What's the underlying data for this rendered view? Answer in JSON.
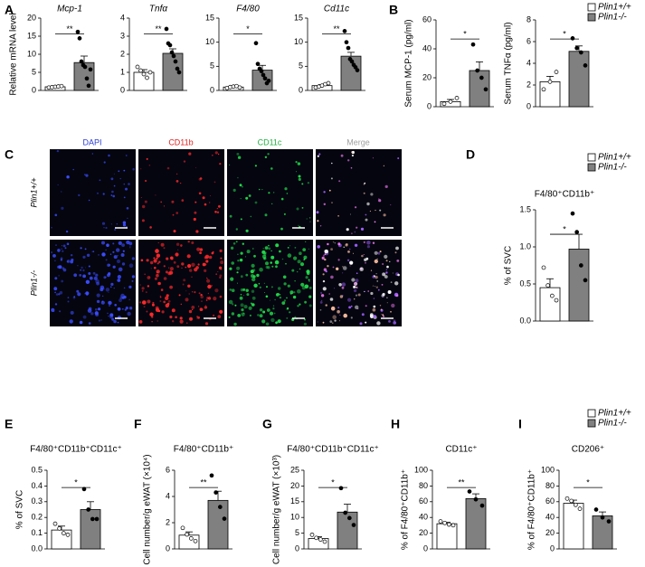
{
  "panel_labels": [
    "A",
    "B",
    "C",
    "D",
    "E",
    "F",
    "G",
    "H",
    "I"
  ],
  "micrograph": {
    "columns": [
      "DAPI",
      "CD11b",
      "CD11c",
      "Merge"
    ],
    "rows": [
      "Plin1+/+",
      "Plin1-/-"
    ]
  },
  "chart_data": [
    {
      "type": "bar",
      "title": "Mcp-1",
      "ylabel": "Relative mRNA level",
      "categories": [
        null
      ],
      "ylim": [
        0,
        20
      ],
      "yticks": [
        0,
        5,
        10,
        15,
        20
      ],
      "significance": "**",
      "series": [
        {
          "name": "Plin1+/+",
          "color": "#ffffff",
          "values": [
            1.0
          ],
          "errors": [
            0.15
          ],
          "points": [
            0.8,
            0.9,
            1.0,
            1.1,
            1.2
          ]
        },
        {
          "name": "Plin1-/-",
          "color": "#808080",
          "values": [
            7.7
          ],
          "errors": [
            1.8
          ],
          "points": [
            16.2,
            14.4,
            8.0,
            7.0,
            6.5,
            3.3,
            1.3,
            5.8
          ]
        }
      ]
    },
    {
      "type": "bar",
      "title": "Tnfα",
      "categories": [
        null
      ],
      "ylim": [
        0,
        4
      ],
      "yticks": [
        0,
        1,
        2,
        3,
        4
      ],
      "significance": "**",
      "series": [
        {
          "name": "Plin1+/+",
          "color": "#ffffff",
          "values": [
            1.0
          ],
          "errors": [
            0.15
          ],
          "points": [
            1.3,
            1.1,
            0.9,
            0.7,
            1.0
          ]
        },
        {
          "name": "Plin1-/-",
          "color": "#808080",
          "values": [
            2.05
          ],
          "errors": [
            0.25
          ],
          "points": [
            3.4,
            2.6,
            2.5,
            2.1,
            1.9,
            1.6,
            1.2,
            1.0
          ]
        }
      ]
    },
    {
      "type": "bar",
      "title": "F4/80",
      "categories": [
        null
      ],
      "ylim": [
        0,
        15
      ],
      "yticks": [
        0,
        5,
        10,
        15
      ],
      "significance": "*",
      "series": [
        {
          "name": "Plin1+/+",
          "color": "#ffffff",
          "values": [
            0.7
          ],
          "errors": [
            0.1
          ],
          "points": [
            0.5,
            0.7,
            0.8,
            0.9,
            0.6
          ]
        },
        {
          "name": "Plin1-/-",
          "color": "#808080",
          "values": [
            4.2
          ],
          "errors": [
            1.0
          ],
          "points": [
            9.8,
            5.5,
            4.5,
            4.0,
            3.2,
            2.5,
            1.5,
            2.0
          ]
        }
      ]
    },
    {
      "type": "bar",
      "title": "Cd11c",
      "categories": [
        null
      ],
      "ylim": [
        0,
        15
      ],
      "yticks": [
        0,
        5,
        10,
        15
      ],
      "significance": "**",
      "series": [
        {
          "name": "Plin1+/+",
          "color": "#ffffff",
          "values": [
            1.0
          ],
          "errors": [
            0.2
          ],
          "points": [
            0.6,
            0.8,
            1.0,
            1.3,
            1.5
          ]
        },
        {
          "name": "Plin1-/-",
          "color": "#808080",
          "values": [
            7.1
          ],
          "errors": [
            0.8
          ],
          "points": [
            12.3,
            10.0,
            8.8,
            6.5,
            6.0,
            5.3,
            4.8,
            4.2
          ]
        }
      ]
    },
    {
      "type": "bar",
      "ylabel": "Serum MCP-1 (pg/ml)",
      "categories": [
        null
      ],
      "ylim": [
        0,
        60
      ],
      "yticks": [
        0,
        20,
        40,
        60
      ],
      "significance": "*",
      "series": [
        {
          "name": "Plin1+/+",
          "color": "#ffffff",
          "values": [
            3.5
          ],
          "errors": [
            1.5
          ],
          "points": [
            2,
            3.5,
            6
          ]
        },
        {
          "name": "Plin1-/-",
          "color": "#808080",
          "values": [
            25
          ],
          "errors": [
            6
          ],
          "points": [
            43,
            25,
            20,
            12
          ]
        }
      ]
    },
    {
      "type": "bar",
      "ylabel": "Serum TNFα (pg/ml)",
      "categories": [
        null
      ],
      "ylim": [
        0,
        8
      ],
      "yticks": [
        0,
        2,
        4,
        6,
        8
      ],
      "significance": "*",
      "series": [
        {
          "name": "Plin1+/+",
          "color": "#ffffff",
          "values": [
            2.3
          ],
          "errors": [
            0.5
          ],
          "points": [
            1.6,
            2.3,
            3.2
          ]
        },
        {
          "name": "Plin1-/-",
          "color": "#808080",
          "values": [
            5.1
          ],
          "errors": [
            0.5
          ],
          "points": [
            6.3,
            5.4,
            5.0,
            3.8
          ]
        }
      ]
    },
    {
      "type": "bar",
      "title": "F4/80⁺CD11b⁺",
      "ylabel": "% of SVC",
      "categories": [
        null
      ],
      "ylim": [
        0,
        1.5
      ],
      "yticks": [
        {
          "value": 0,
          "label": "0.0"
        },
        0.5,
        {
          "value": 1,
          "label": "1.0"
        },
        1.5
      ],
      "significance": "*",
      "series": [
        {
          "name": "Plin1+/+",
          "color": "#ffffff",
          "values": [
            0.45
          ],
          "errors": [
            0.12
          ],
          "points": [
            0.72,
            0.48,
            0.34,
            0.28
          ]
        },
        {
          "name": "Plin1-/-",
          "color": "#808080",
          "values": [
            0.97
          ],
          "errors": [
            0.2
          ],
          "points": [
            1.45,
            1.2,
            0.75,
            0.55
          ]
        }
      ]
    },
    {
      "type": "bar",
      "title": "F4/80⁺CD11b⁺CD11c⁺",
      "ylabel": "% of SVC",
      "categories": [
        null
      ],
      "ylim": [
        0,
        0.5
      ],
      "yticks": [
        {
          "value": 0,
          "label": "0.0"
        },
        0.1,
        0.2,
        0.3,
        0.4,
        0.5
      ],
      "significance": "*",
      "series": [
        {
          "name": "Plin1+/+",
          "color": "#ffffff",
          "values": [
            0.12
          ],
          "errors": [
            0.025
          ],
          "points": [
            0.16,
            0.13,
            0.1,
            0.09
          ]
        },
        {
          "name": "Plin1-/-",
          "color": "#808080",
          "values": [
            0.25
          ],
          "errors": [
            0.05
          ],
          "points": [
            0.38,
            0.25,
            0.19,
            0.19
          ]
        }
      ]
    },
    {
      "type": "bar",
      "title": "F4/80⁺CD11b⁺",
      "ylabel": "Cell number/g eWAT (×10⁴)",
      "categories": [
        null
      ],
      "ylim": [
        0,
        6
      ],
      "yticks": [
        0,
        2,
        4,
        6
      ],
      "significance": "**",
      "series": [
        {
          "name": "Plin1+/+",
          "color": "#ffffff",
          "values": [
            1.05
          ],
          "errors": [
            0.25
          ],
          "points": [
            1.6,
            1.1,
            0.8,
            0.6
          ]
        },
        {
          "name": "Plin1-/-",
          "color": "#808080",
          "values": [
            3.7
          ],
          "errors": [
            0.7
          ],
          "points": [
            5.6,
            4.3,
            3.2,
            2.3
          ]
        }
      ]
    },
    {
      "type": "bar",
      "title": "F4/80⁺CD11b⁺CD11c⁺",
      "ylabel": "Cell number/g eWAT (×10³)",
      "categories": [
        null
      ],
      "ylim": [
        0,
        25
      ],
      "yticks": [
        0,
        5,
        10,
        15,
        20,
        25
      ],
      "significance": "*",
      "series": [
        {
          "name": "Plin1+/+",
          "color": "#ffffff",
          "values": [
            3.3
          ],
          "errors": [
            0.6
          ],
          "points": [
            4.5,
            3.5,
            3.0,
            2.3
          ]
        },
        {
          "name": "Plin1-/-",
          "color": "#808080",
          "values": [
            11.7
          ],
          "errors": [
            2.5
          ],
          "points": [
            19.3,
            11.5,
            9.8,
            7.6
          ]
        }
      ]
    },
    {
      "type": "bar",
      "title": "CD11c⁺",
      "ylabel": "% of F4/80⁺CD11b⁺",
      "categories": [
        null
      ],
      "ylim": [
        0,
        100
      ],
      "yticks": [
        0,
        20,
        40,
        60,
        80,
        100
      ],
      "significance": "**",
      "series": [
        {
          "name": "Plin1+/+",
          "color": "#ffffff",
          "values": [
            32
          ],
          "errors": [
            1.8
          ],
          "points": [
            35,
            33,
            31,
            30
          ]
        },
        {
          "name": "Plin1-/-",
          "color": "#808080",
          "values": [
            64
          ],
          "errors": [
            6
          ],
          "points": [
            73,
            63,
            55
          ]
        }
      ]
    },
    {
      "type": "bar",
      "title": "CD206⁺",
      "ylabel": "% of F4/80⁺CD11b⁺",
      "categories": [
        null
      ],
      "ylim": [
        0,
        100
      ],
      "yticks": [
        0,
        20,
        40,
        60,
        80,
        100
      ],
      "significance": "*",
      "series": [
        {
          "name": "Plin1+/+",
          "color": "#ffffff",
          "values": [
            58
          ],
          "errors": [
            4
          ],
          "points": [
            64,
            61,
            56,
            51
          ]
        },
        {
          "name": "Plin1-/-",
          "color": "#808080",
          "values": [
            42
          ],
          "errors": [
            5
          ],
          "points": [
            50,
            40,
            35
          ]
        }
      ]
    }
  ]
}
